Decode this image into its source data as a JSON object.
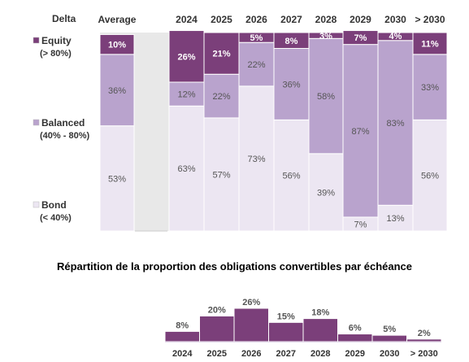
{
  "colors": {
    "equity": "#7b3f7a",
    "balanced": "#b9a3cd",
    "bond": "#ece6f2",
    "plot_bg": "#e8e8e8",
    "border": "#ffffff"
  },
  "chart_data": [
    {
      "type": "bar",
      "stacked": true,
      "header_label": "Delta",
      "categories": [
        "Average",
        "2024",
        "2025",
        "2026",
        "2027",
        "2028",
        "2029",
        "2030",
        "> 2030"
      ],
      "series": [
        {
          "name": "Bond",
          "sublabel": "(< 40%)",
          "values": [
            53,
            63,
            57,
            73,
            56,
            39,
            7,
            13,
            56
          ]
        },
        {
          "name": "Balanced",
          "sublabel": "(40% - 80%)",
          "values": [
            36,
            12,
            22,
            22,
            36,
            58,
            87,
            83,
            33
          ]
        },
        {
          "name": "Equity",
          "sublabel": "(> 80%)",
          "values": [
            10,
            26,
            21,
            5,
            8,
            3,
            7,
            4,
            11
          ]
        }
      ],
      "ylim": [
        0,
        100
      ],
      "legend_position": "left",
      "grid": false
    },
    {
      "type": "bar",
      "title": "Répartition de la proportion des obligations convertibles par échéance",
      "categories": [
        "2024",
        "2025",
        "2026",
        "2027",
        "2028",
        "2029",
        "2030",
        "> 2030"
      ],
      "values": [
        8,
        20,
        26,
        15,
        18,
        6,
        5,
        2
      ],
      "unit": "%"
    }
  ]
}
